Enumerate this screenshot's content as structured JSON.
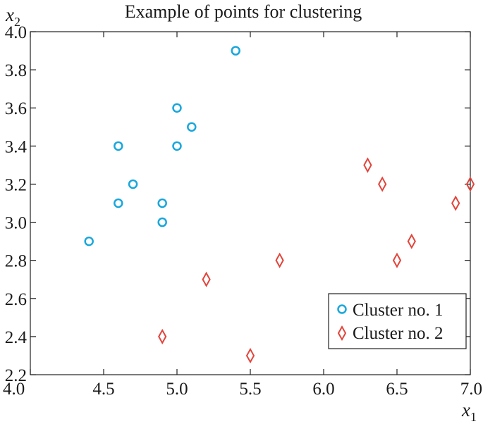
{
  "chart_data": {
    "type": "scatter",
    "title": "Example of points for clustering",
    "xlabel": {
      "base": "x",
      "sub": "1"
    },
    "ylabel": {
      "base": "x",
      "sub": "2"
    },
    "xlim": [
      4.0,
      7.0
    ],
    "ylim": [
      2.2,
      4.0
    ],
    "xticks": [
      "4.0",
      "4.5",
      "5.0",
      "5.5",
      "6.0",
      "6.5",
      "7.0"
    ],
    "yticks": [
      "2.2",
      "2.4",
      "2.6",
      "2.8",
      "3.0",
      "3.2",
      "3.4",
      "3.6",
      "3.8",
      "4.0"
    ],
    "grid": false,
    "legend_position": "bottom-right",
    "series": [
      {
        "name": "Cluster no. 1",
        "marker": "circle",
        "color": "#1aa7dc",
        "points": [
          [
            5.4,
            3.9
          ],
          [
            5.0,
            3.6
          ],
          [
            5.1,
            3.5
          ],
          [
            4.6,
            3.4
          ],
          [
            5.0,
            3.4
          ],
          [
            4.7,
            3.2
          ],
          [
            4.6,
            3.1
          ],
          [
            4.9,
            3.1
          ],
          [
            4.9,
            3.0
          ],
          [
            4.4,
            2.9
          ]
        ]
      },
      {
        "name": "Cluster no. 2",
        "marker": "diamond",
        "color": "#e2443a",
        "points": [
          [
            6.3,
            3.3
          ],
          [
            6.4,
            3.2
          ],
          [
            7.0,
            3.2
          ],
          [
            6.9,
            3.1
          ],
          [
            6.6,
            2.9
          ],
          [
            6.5,
            2.8
          ],
          [
            5.7,
            2.8
          ],
          [
            5.2,
            2.7
          ],
          [
            4.9,
            2.4
          ],
          [
            5.5,
            2.3
          ]
        ]
      }
    ]
  }
}
